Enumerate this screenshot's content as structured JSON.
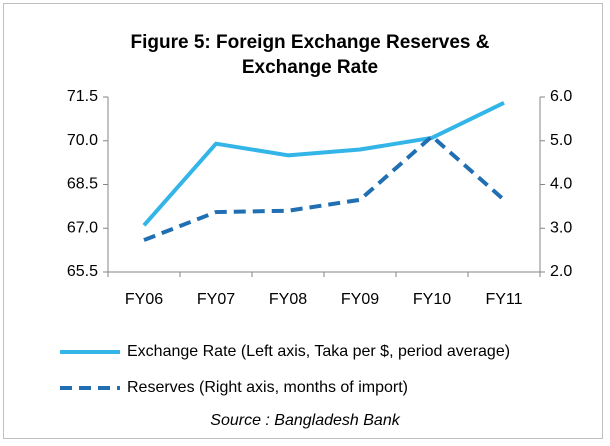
{
  "chart_data": {
    "type": "line",
    "title": "Figure 5: Foreign Exchange Reserves & Exchange Rate",
    "annotation": "Source : Bangladesh Bank",
    "categories": [
      "FY06",
      "FY07",
      "FY08",
      "FY09",
      "FY10",
      "FY11"
    ],
    "series": [
      {
        "name": "Exchange Rate (Left axis, Taka per $, period average)",
        "color": "#33b5e8",
        "dash": false,
        "values": [
          67.1,
          69.9,
          69.5,
          69.7,
          70.1,
          71.3
        ]
      },
      {
        "name": "Reserves (Right axis, months of import)",
        "color": "#1f6fb2",
        "dash": true,
        "axis": "y2",
        "values": [
          2.73,
          3.37,
          3.4,
          3.65,
          5.1,
          3.65
        ]
      }
    ],
    "ylim": [
      65.5,
      71.5
    ],
    "yticks": [
      65.5,
      {
        "value": 67,
        "label": "67.0"
      },
      68.5,
      {
        "value": 70,
        "label": "70.0"
      },
      71.5
    ],
    "y2lim": [
      2,
      6
    ],
    "y2ticks": [
      {
        "value": 2,
        "label": "2.0"
      },
      {
        "value": 3,
        "label": "3.0"
      },
      {
        "value": 4,
        "label": "4.0"
      },
      {
        "value": 5,
        "label": "5.0"
      },
      {
        "value": 6,
        "label": "6.0"
      }
    ],
    "grid": false,
    "legend": "bottom"
  }
}
